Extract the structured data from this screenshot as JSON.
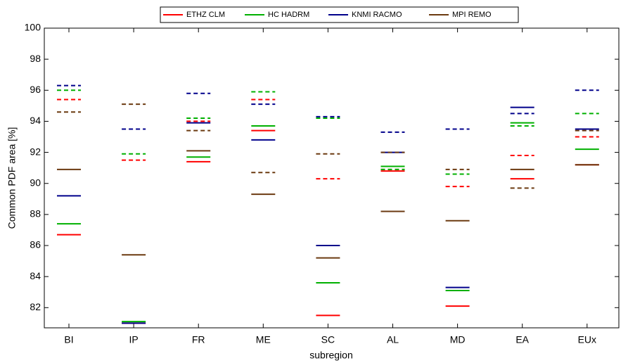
{
  "chart_data": {
    "type": "level",
    "xlabel": "subregion",
    "ylabel": "Common PDF area [%]",
    "categories": [
      "BI",
      "IP",
      "FR",
      "ME",
      "SC",
      "AL",
      "MD",
      "EA",
      "EUx"
    ],
    "ylim": [
      80.7,
      100
    ],
    "yticks": [
      82,
      84,
      86,
      88,
      90,
      92,
      94,
      96,
      98,
      100
    ],
    "series": [
      {
        "name": "ETHZ CLM",
        "color": "#ff0000",
        "values": [
          86.7,
          81.0,
          91.4,
          93.4,
          81.5,
          90.8,
          82.1,
          90.3,
          91.2
        ],
        "dashed_values": [
          95.4,
          91.5,
          94.0,
          95.4,
          90.3,
          90.9,
          89.8,
          91.8,
          93.0
        ]
      },
      {
        "name": "HC HADRM",
        "color": "#00b000",
        "values": [
          87.4,
          81.1,
          91.7,
          93.7,
          83.6,
          91.1,
          83.1,
          93.9,
          92.2
        ],
        "dashed_values": [
          96.0,
          91.9,
          94.2,
          95.9,
          94.2,
          90.9,
          90.6,
          93.7,
          94.5
        ]
      },
      {
        "name": "KNMI RACMO",
        "color": "#00008b",
        "values": [
          89.2,
          81.0,
          93.9,
          92.8,
          86.0,
          92.0,
          83.3,
          94.9,
          93.5
        ],
        "dashed_values": [
          96.3,
          93.5,
          95.8,
          95.1,
          94.3,
          93.3,
          93.5,
          94.5,
          96.0
        ]
      },
      {
        "name": "MPI REMO",
        "color": "#6b3a10",
        "values": [
          90.9,
          85.4,
          92.1,
          89.3,
          85.2,
          88.2,
          87.6,
          90.9,
          91.2
        ],
        "dashed_values": [
          94.6,
          95.1,
          93.4,
          90.7,
          91.9,
          92.0,
          90.9,
          89.7,
          93.4
        ]
      }
    ]
  }
}
